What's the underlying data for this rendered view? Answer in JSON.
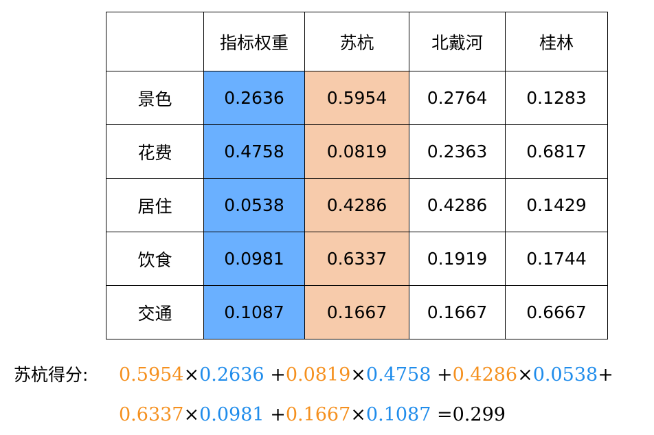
{
  "table": {
    "headers": [
      "",
      "指标权重",
      "苏杭",
      "北戴河",
      "桂林"
    ],
    "rows": [
      {
        "label": "景色",
        "weight": "0.2636",
        "suhang": "0.5954",
        "beidaihe": "0.2764",
        "guilin": "0.1283"
      },
      {
        "label": "花费",
        "weight": "0.4758",
        "suhang": "0.0819",
        "beidaihe": "0.2363",
        "guilin": "0.6817"
      },
      {
        "label": "居住",
        "weight": "0.0538",
        "suhang": "0.4286",
        "beidaihe": "0.4286",
        "guilin": "0.1429"
      },
      {
        "label": "饮食",
        "weight": "0.0981",
        "suhang": "0.6337",
        "beidaihe": "0.1919",
        "guilin": "0.1744"
      },
      {
        "label": "交通",
        "weight": "0.1087",
        "suhang": "0.1667",
        "beidaihe": "0.1667",
        "guilin": "0.6667"
      }
    ]
  },
  "colors": {
    "weight_column_bg": "#6ab0ff",
    "suhang_column_bg": "#f7cbab",
    "formula_score_color": "#f5901e",
    "formula_weight_color": "#1f8ceb"
  },
  "formula": {
    "label": "苏杭得分:",
    "times": "×",
    "plus": "+",
    "equals": "=",
    "terms": [
      {
        "score": "0.5954",
        "weight": "0.2636"
      },
      {
        "score": "0.0819",
        "weight": "0.4758"
      },
      {
        "score": "0.4286",
        "weight": "0.0538"
      },
      {
        "score": "0.6337",
        "weight": "0.0981"
      },
      {
        "score": "0.1667",
        "weight": "0.1087"
      }
    ],
    "result": "0.299"
  }
}
